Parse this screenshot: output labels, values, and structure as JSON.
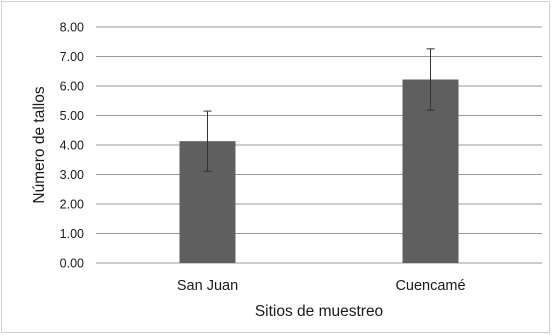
{
  "chart_data": {
    "type": "bar",
    "title": "",
    "xlabel": "Sitios de muestreo",
    "ylabel": "Número de tallos",
    "categories": [
      "San Juan",
      "Cuencamé"
    ],
    "values": [
      4.13,
      6.22
    ],
    "error": [
      1.02,
      1.04
    ],
    "ylim": [
      0,
      8
    ],
    "yticks": [
      "0.00",
      "1.00",
      "2.00",
      "3.00",
      "4.00",
      "5.00",
      "6.00",
      "7.00",
      "8.00"
    ],
    "grid": true,
    "legend": "none",
    "bar_color": "#5f5f5f",
    "grid_color": "#9a9a9a",
    "error_color": "#333333"
  }
}
